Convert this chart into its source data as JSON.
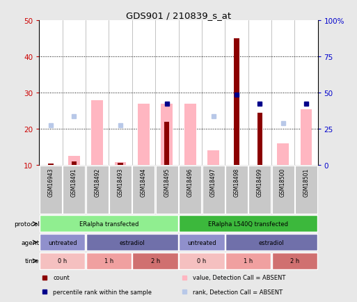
{
  "title": "GDS901 / 210839_s_at",
  "samples": [
    "GSM16943",
    "GSM18491",
    "GSM18492",
    "GSM18493",
    "GSM18494",
    "GSM18495",
    "GSM18496",
    "GSM18497",
    "GSM18498",
    "GSM18499",
    "GSM18500",
    "GSM18501"
  ],
  "count_values": [
    10.3,
    11.0,
    null,
    10.5,
    null,
    22.0,
    null,
    null,
    45.0,
    24.5,
    null,
    null
  ],
  "value_absent": [
    null,
    12.5,
    28.0,
    10.8,
    27.0,
    27.0,
    27.0,
    14.0,
    null,
    null,
    16.0,
    25.5
  ],
  "rank_absent": [
    21.0,
    23.5,
    null,
    21.0,
    null,
    null,
    null,
    23.5,
    null,
    null,
    21.5,
    null
  ],
  "percentile_rank": [
    null,
    null,
    null,
    null,
    null,
    27.0,
    null,
    null,
    29.5,
    27.0,
    null,
    27.0
  ],
  "ylim_left": [
    10,
    50
  ],
  "ylim_right": [
    0,
    100
  ],
  "yticks_left": [
    10,
    20,
    30,
    40,
    50
  ],
  "yticks_right": [
    0,
    25,
    50,
    75,
    100
  ],
  "ytick_labels_right": [
    "0",
    "25",
    "50",
    "75",
    "100%"
  ],
  "color_count": "#8B0000",
  "color_value_absent": "#FFB6C1",
  "color_rank_absent": "#B8C8E8",
  "color_percentile": "#00008B",
  "protocol_groups": [
    {
      "label": "ERalpha transfected",
      "start": 0,
      "end": 5,
      "color": "#90EE90"
    },
    {
      "label": "ERalpha L540Q transfected",
      "start": 6,
      "end": 11,
      "color": "#3CB83C"
    }
  ],
  "agent_groups": [
    {
      "label": "untreated",
      "start": 0,
      "end": 1,
      "color": "#9090CC"
    },
    {
      "label": "estradiol",
      "start": 2,
      "end": 5,
      "color": "#7070AA"
    },
    {
      "label": "untreated",
      "start": 6,
      "end": 7,
      "color": "#9090CC"
    },
    {
      "label": "estradiol",
      "start": 8,
      "end": 11,
      "color": "#7070AA"
    }
  ],
  "time_groups": [
    {
      "label": "0 h",
      "start": 0,
      "end": 1,
      "color": "#F5C0C0"
    },
    {
      "label": "1 h",
      "start": 2,
      "end": 3,
      "color": "#F0A0A0"
    },
    {
      "label": "2 h",
      "start": 4,
      "end": 5,
      "color": "#D07070"
    },
    {
      "label": "0 h",
      "start": 6,
      "end": 7,
      "color": "#F5C0C0"
    },
    {
      "label": "1 h",
      "start": 8,
      "end": 9,
      "color": "#F0A0A0"
    },
    {
      "label": "2 h",
      "start": 10,
      "end": 11,
      "color": "#D07070"
    }
  ],
  "bg_color": "#E8E8E8",
  "plot_bg": "#FFFFFF",
  "left_tick_color": "#CC0000",
  "right_tick_color": "#0000CC",
  "legend_items": [
    {
      "color": "#8B0000",
      "label": "count"
    },
    {
      "color": "#00008B",
      "label": "percentile rank within the sample"
    },
    {
      "color": "#FFB6C1",
      "label": "value, Detection Call = ABSENT"
    },
    {
      "color": "#B8C8E8",
      "label": "rank, Detection Call = ABSENT"
    }
  ]
}
